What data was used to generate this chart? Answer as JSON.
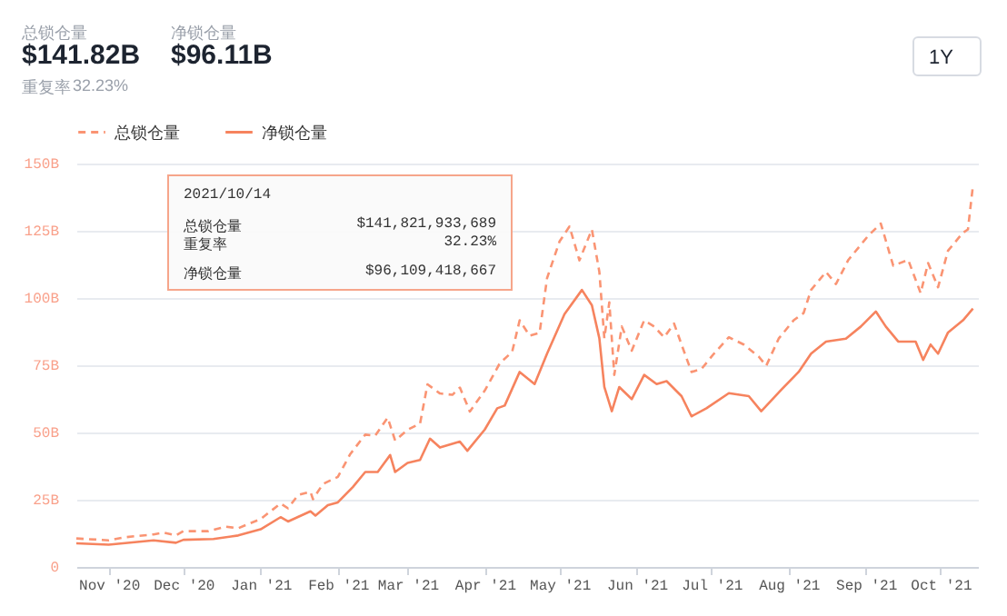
{
  "chart_data": {
    "type": "line",
    "annotations": [
      "总锁仓量",
      "$141.82B",
      "净锁仓量",
      "$96.11B",
      "重复率",
      "32.23%",
      "1Y",
      "2021/10/14",
      "总锁仓量",
      "$141,821,933,689",
      "重复率",
      "32.23%",
      "净锁仓量",
      "$96,109,418,667"
    ],
    "xlim": [
      "2020-10-19",
      "2021-10-16"
    ],
    "xticks": [
      {
        "value": "2020-11-01",
        "label": "Nov '20"
      },
      {
        "value": "2020-12-01",
        "label": "Dec '20"
      },
      {
        "value": "2021-01-01",
        "label": "Jan '21"
      },
      {
        "value": "2021-02-01",
        "label": "Feb '21"
      },
      {
        "value": "2021-03-01",
        "label": "Mar '21"
      },
      {
        "value": "2021-04-01",
        "label": "Apr '21"
      },
      {
        "value": "2021-05-01",
        "label": "May '21"
      },
      {
        "value": "2021-06-01",
        "label": "Jun '21"
      },
      {
        "value": "2021-07-01",
        "label": "Jul '21"
      },
      {
        "value": "2021-08-01",
        "label": "Aug '21"
      },
      {
        "value": "2021-09-01",
        "label": "Sep '21"
      },
      {
        "value": "2021-10-01",
        "label": "Oct '21"
      }
    ],
    "ylim": [
      0,
      150
    ],
    "yticks": [
      {
        "value": 0,
        "label": "0"
      },
      {
        "value": 25,
        "label": "25B"
      },
      {
        "value": 50,
        "label": "50B"
      },
      {
        "value": 75,
        "label": "75B"
      },
      {
        "value": 100,
        "label": "100B"
      },
      {
        "value": 125,
        "label": "125B"
      },
      {
        "value": 150,
        "label": "150B"
      }
    ],
    "grid": "y",
    "legend": "top left",
    "series": [
      {
        "name": "总锁仓量",
        "color": "#fa9473",
        "line_style": "dashed",
        "x": [
          "2020-10-19",
          "2020-11-01",
          "2020-11-07",
          "2020-11-19",
          "2020-11-23",
          "2020-11-28",
          "2020-12-01",
          "2020-12-11",
          "2020-12-18",
          "2020-12-23",
          "2021-01-01",
          "2021-01-05",
          "2021-01-09",
          "2021-01-12",
          "2021-01-16",
          "2021-01-21",
          "2021-01-22",
          "2021-01-26",
          "2021-02-01",
          "2021-02-06",
          "2021-02-12",
          "2021-02-16",
          "2021-02-21",
          "2021-02-24",
          "2021-03-01",
          "2021-03-06",
          "2021-03-09",
          "2021-03-14",
          "2021-03-19",
          "2021-03-22",
          "2021-03-26",
          "2021-04-01",
          "2021-04-07",
          "2021-04-12",
          "2021-04-15",
          "2021-04-19",
          "2021-04-23",
          "2021-04-26",
          "2021-05-01",
          "2021-05-05",
          "2021-05-09",
          "2021-05-14",
          "2021-05-17",
          "2021-05-19",
          "2021-05-21",
          "2021-05-23",
          "2021-05-26",
          "2021-05-30",
          "2021-06-04",
          "2021-06-08",
          "2021-06-12",
          "2021-06-16",
          "2021-06-19",
          "2021-06-23",
          "2021-06-27",
          "2021-07-02",
          "2021-07-08",
          "2021-07-14",
          "2021-07-20",
          "2021-07-23",
          "2021-07-28",
          "2021-08-03",
          "2021-08-07",
          "2021-08-10",
          "2021-08-16",
          "2021-08-20",
          "2021-08-25",
          "2021-09-02",
          "2021-09-07",
          "2021-09-12",
          "2021-09-18",
          "2021-09-23",
          "2021-09-26",
          "2021-09-30",
          "2021-10-04",
          "2021-10-10",
          "2021-10-12",
          "2021-10-14"
        ],
        "values": [
          10.6,
          9.9,
          11,
          12.1,
          12.8,
          11.7,
          13.3,
          13.3,
          15,
          14.4,
          17.8,
          20.7,
          23.6,
          21.8,
          26.7,
          28,
          25.2,
          30.8,
          33.5,
          42,
          49.2,
          48.8,
          55.5,
          47,
          51,
          53.3,
          67.9,
          64.5,
          64,
          66.7,
          57.8,
          65.6,
          75.7,
          80,
          91.7,
          86,
          87,
          107.4,
          121,
          126.6,
          114,
          125.5,
          109.7,
          85,
          98.4,
          71.4,
          89.4,
          80.4,
          91.7,
          89.4,
          85.4,
          90.5,
          82.7,
          72.5,
          73.6,
          79.3,
          85.4,
          82.7,
          78.2,
          74.8,
          84.9,
          91.7,
          94.4,
          103,
          109.7,
          105.2,
          114.2,
          123.2,
          127.7,
          112,
          114.2,
          101.8,
          113,
          104,
          117.6,
          124.3,
          125.5,
          141.8
        ]
      },
      {
        "name": "净锁仓量",
        "color": "#f6835e",
        "line_style": "solid",
        "x": [
          "2020-10-19",
          "2020-11-01",
          "2020-11-19",
          "2020-11-28",
          "2020-12-01",
          "2020-12-13",
          "2020-12-23",
          "2021-01-01",
          "2021-01-09",
          "2021-01-12",
          "2021-01-21",
          "2021-01-23",
          "2021-01-28",
          "2021-02-01",
          "2021-02-07",
          "2021-02-12",
          "2021-02-17",
          "2021-02-22",
          "2021-02-24",
          "2021-03-01",
          "2021-03-06",
          "2021-03-10",
          "2021-03-14",
          "2021-03-22",
          "2021-03-25",
          "2021-04-01",
          "2021-04-06",
          "2021-04-09",
          "2021-04-15",
          "2021-04-21",
          "2021-04-26",
          "2021-05-03",
          "2021-05-10",
          "2021-05-14",
          "2021-05-17",
          "2021-05-19",
          "2021-05-22",
          "2021-05-25",
          "2021-05-30",
          "2021-06-04",
          "2021-06-09",
          "2021-06-13",
          "2021-06-19",
          "2021-06-23",
          "2021-06-29",
          "2021-07-08",
          "2021-07-16",
          "2021-07-21",
          "2021-07-29",
          "2021-08-05",
          "2021-08-10",
          "2021-08-16",
          "2021-08-24",
          "2021-08-30",
          "2021-09-05",
          "2021-09-09",
          "2021-09-14",
          "2021-09-21",
          "2021-09-24",
          "2021-09-27",
          "2021-09-30",
          "2021-10-04",
          "2021-10-10",
          "2021-10-14"
        ],
        "values": [
          8.8,
          8.3,
          9.9,
          9,
          10.1,
          10.4,
          11.7,
          14,
          18.5,
          16.9,
          20.7,
          19.1,
          23,
          24,
          29.7,
          35.3,
          35.3,
          41.6,
          35.3,
          38.7,
          39.8,
          47.7,
          44.4,
          46.6,
          43.2,
          51.1,
          59,
          60,
          72.5,
          68,
          79.3,
          94,
          103,
          97.3,
          85,
          66.9,
          57.9,
          66.9,
          62.4,
          71.4,
          68,
          69.1,
          63.5,
          56,
          59,
          64.6,
          63.5,
          57.9,
          65.8,
          72.5,
          79.3,
          83.8,
          84.9,
          89.4,
          95,
          89.4,
          83.8,
          83.8,
          77,
          82.7,
          79.3,
          87.2,
          91.7,
          96.1
        ]
      }
    ]
  }
}
